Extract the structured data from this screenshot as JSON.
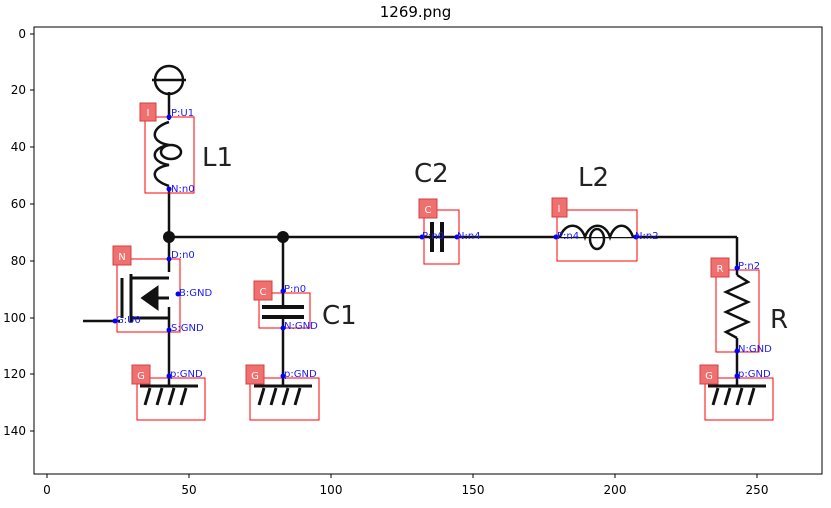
{
  "title": "1269.png",
  "axes": {
    "x_ticks": [
      "0",
      "50",
      "100",
      "150",
      "200",
      "250"
    ],
    "y_ticks": [
      "0",
      "20",
      "40",
      "60",
      "80",
      "100",
      "120",
      "140"
    ]
  },
  "components": [
    {
      "id": "L1",
      "label": "L1",
      "tag": "I"
    },
    {
      "id": "C2",
      "label": "C2",
      "tag": "C"
    },
    {
      "id": "L2",
      "label": "L2",
      "tag": "I"
    },
    {
      "id": "C1",
      "label": "C1",
      "tag": "C"
    },
    {
      "id": "R",
      "label": "R",
      "tag": "R"
    },
    {
      "id": "N",
      "label": "",
      "tag": "N"
    },
    {
      "id": "G1",
      "label": "",
      "tag": "G"
    },
    {
      "id": "G2",
      "label": "",
      "tag": "G"
    },
    {
      "id": "G3",
      "label": "",
      "tag": "G"
    }
  ],
  "pins": {
    "l1_p": "P:U1",
    "l1_n": "N:n0",
    "m_d": "D:n0",
    "m_b": "B:GND",
    "m_g": "G:U0",
    "m_s": "S:GND",
    "c1_p": "P:n0",
    "c1_n": "N:GND",
    "c2_p": "P:n0",
    "c2_n": "N:n4",
    "l2_p": "P:n4",
    "l2_n": "N:n2",
    "r_p": "P:n2",
    "r_n": "N:GND",
    "g1": "p:GND",
    "g2": "p:GND",
    "g3": "p:GND"
  },
  "colors": {
    "box": "#ff0000",
    "tag_fill": "#f07070",
    "pin": "#0000ff",
    "wire": "#111111"
  }
}
